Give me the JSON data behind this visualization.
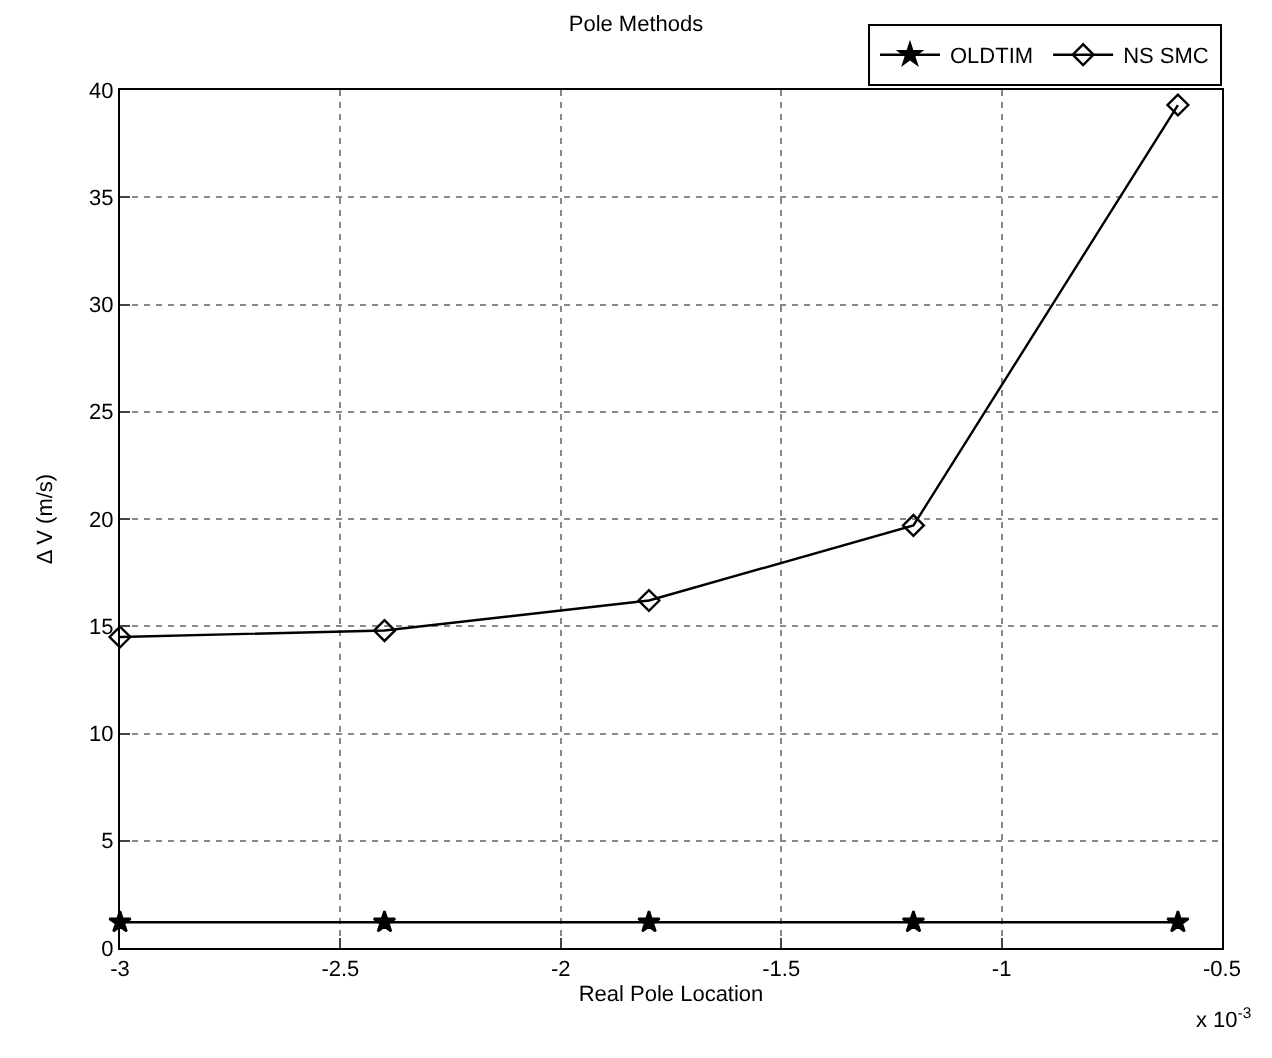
{
  "chart_data": {
    "type": "line",
    "title": "Pole Methods",
    "xlabel": "Real Pole Location",
    "ylabel": "Δ V (m/s)",
    "x": [
      -3,
      -2.4,
      -1.8,
      -1.2,
      -0.6
    ],
    "series": [
      {
        "name": "OLDTIM",
        "color": "#000000",
        "marker": "star",
        "values": [
          1.2,
          1.2,
          1.2,
          1.2,
          1.2
        ]
      },
      {
        "name": "NS SMC",
        "color": "#000000",
        "marker": "diamond",
        "values": [
          14.5,
          14.8,
          16.2,
          19.7,
          39.3
        ]
      }
    ],
    "xlim": [
      -3,
      -0.5
    ],
    "xticks": [
      -3,
      -2.5,
      -2,
      -1.5,
      -1,
      -0.5
    ],
    "ylim": [
      0,
      40
    ],
    "yticks": [
      0,
      5,
      10,
      15,
      20,
      25,
      30,
      35,
      40
    ],
    "grid": true,
    "line_style": "solid",
    "legend": "top right",
    "annotations": [
      "x 10$^{-3}$"
    ]
  }
}
